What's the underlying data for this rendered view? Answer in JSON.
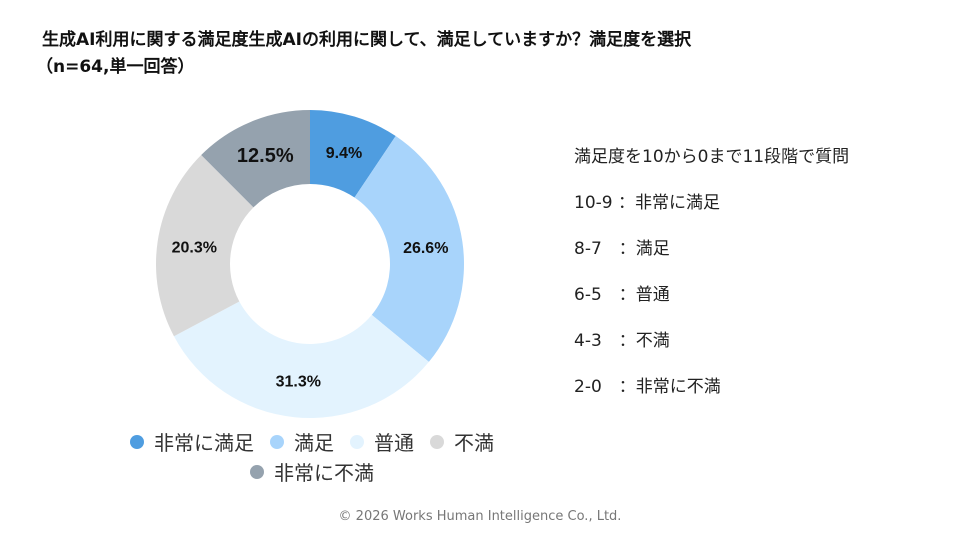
{
  "title": {
    "line1": "生成AI利用に関する満足度生成AIの利用に関して、満足していますか？満足度を選択",
    "line2": "（n=64,単一回答）"
  },
  "chart_data": {
    "type": "pie",
    "donut": true,
    "categories": [
      "非常に満足",
      "満足",
      "普通",
      "不満",
      "非常に不満"
    ],
    "values": [
      9.4,
      26.6,
      31.3,
      20.3,
      12.5
    ],
    "labels": [
      "9.4%",
      "26.6%",
      "31.3%",
      "20.3%",
      "12.5%"
    ],
    "colors": [
      "#4f9de0",
      "#a8d4fb",
      "#e3f3fe",
      "#d9d9d9",
      "#95a2ae"
    ],
    "legend_position": "bottom"
  },
  "notes": [
    "満足度を10から0まで11段階で質問",
    "10-9 ：非常に満足",
    "8-7　：満足",
    "6-5　：普通",
    "4-3　：不満",
    "2-0　：非常に不満"
  ],
  "copyright": "© 2026 Works Human Intelligence Co., Ltd."
}
